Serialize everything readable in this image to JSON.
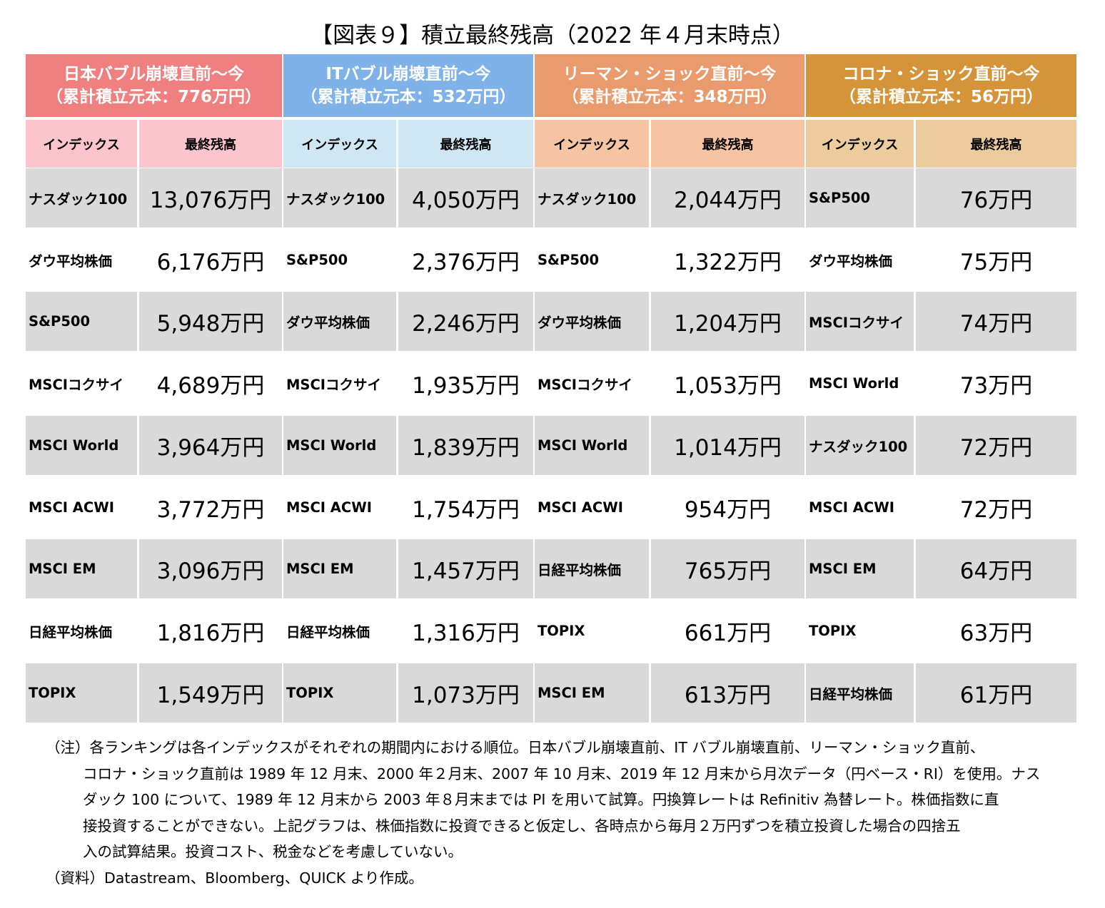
{
  "chart_data": {
    "type": "table",
    "title": "【図表９】積立最終残高（2022 年４月末時点）",
    "groups": [
      {
        "header_line1": "日本バブル崩壊直前〜今",
        "header_line2": "（累計積立元本：776万円）",
        "header_color": "#f08080",
        "subheader_color": "#fcc4cc",
        "col_index": "インデックス",
        "col_value": "最終残高",
        "rows": [
          {
            "index": "ナスダック100",
            "value": "13,076万円"
          },
          {
            "index": "ダウ平均株価",
            "value": "6,176万円"
          },
          {
            "index": "S&P500",
            "value": "5,948万円"
          },
          {
            "index": "MSCIコクサイ",
            "value": "4,689万円"
          },
          {
            "index": "MSCI World",
            "value": "3,964万円"
          },
          {
            "index": "MSCI ACWI",
            "value": "3,772万円"
          },
          {
            "index": "MSCI EM",
            "value": "3,096万円"
          },
          {
            "index": "日経平均株価",
            "value": "1,816万円"
          },
          {
            "index": "TOPIX",
            "value": "1,549万円"
          }
        ]
      },
      {
        "header_line1": "ITバブル崩壊直前〜今",
        "header_line2": "（累計積立元本：532万円）",
        "header_color": "#7eb2e8",
        "subheader_color": "#cfe6f5",
        "col_index": "インデックス",
        "col_value": "最終残高",
        "rows": [
          {
            "index": "ナスダック100",
            "value": "4,050万円"
          },
          {
            "index": "S&P500",
            "value": "2,376万円"
          },
          {
            "index": "ダウ平均株価",
            "value": "2,246万円"
          },
          {
            "index": "MSCIコクサイ",
            "value": "1,935万円"
          },
          {
            "index": "MSCI World",
            "value": "1,839万円"
          },
          {
            "index": "MSCI ACWI",
            "value": "1,754万円"
          },
          {
            "index": "MSCI EM",
            "value": "1,457万円"
          },
          {
            "index": "日経平均株価",
            "value": "1,316万円"
          },
          {
            "index": "TOPIX",
            "value": "1,073万円"
          }
        ]
      },
      {
        "header_line1": "リーマン・ショック直前〜今",
        "header_line2": "（累計積立元本：348万円）",
        "header_color": "#e99b6e",
        "subheader_color": "#f6c4a2",
        "col_index": "インデックス",
        "col_value": "最終残高",
        "rows": [
          {
            "index": "ナスダック100",
            "value": "2,044万円"
          },
          {
            "index": "S&P500",
            "value": "1,322万円"
          },
          {
            "index": "ダウ平均株価",
            "value": "1,204万円"
          },
          {
            "index": "MSCIコクサイ",
            "value": "1,053万円"
          },
          {
            "index": "MSCI World",
            "value": "1,014万円"
          },
          {
            "index": "MSCI ACWI",
            "value": "954万円"
          },
          {
            "index": "日経平均株価",
            "value": "765万円"
          },
          {
            "index": "TOPIX",
            "value": "661万円"
          },
          {
            "index": "MSCI EM",
            "value": "613万円"
          }
        ]
      },
      {
        "header_line1": "コロナ・ショック直前〜今",
        "header_line2": "（累計積立元本：56万円）",
        "header_color": "#d6943a",
        "subheader_color": "#eccb9c",
        "col_index": "インデックス",
        "col_value": "最終残高",
        "rows": [
          {
            "index": "S&P500",
            "value": "76万円"
          },
          {
            "index": "ダウ平均株価",
            "value": "75万円"
          },
          {
            "index": "MSCIコクサイ",
            "value": "74万円"
          },
          {
            "index": "MSCI World",
            "value": "73万円"
          },
          {
            "index": "ナスダック100",
            "value": "72万円"
          },
          {
            "index": "MSCI ACWI",
            "value": "72万円"
          },
          {
            "index": "MSCI EM",
            "value": "64万円"
          },
          {
            "index": "TOPIX",
            "value": "63万円"
          },
          {
            "index": "日経平均株価",
            "value": "61万円"
          }
        ]
      }
    ]
  },
  "notes": {
    "line1": "（注）各ランキングは各インデックスがそれぞれの期間内における順位。日本バブル崩壊直前、IT バブル崩壊直前、リーマン・ショック直前、",
    "line2": "コロナ・ショック直前は 1989 年 12 月末、2000 年２月末、2007 年 10 月末、2019 年 12 月末から月次データ（円ベース・RI）を使用。ナス",
    "line3": "ダック 100 について、1989 年 12 月末から 2003 年８月末までは PI を用いて試算。円換算レートは Refinitiv 為替レート。株価指数に直",
    "line4": "接投資することができない。上記グラフは、株価指数に投資できると仮定し、各時点から毎月２万円ずつを積立投資した場合の四捨五",
    "line5": "入の試算結果。投資コスト、税金などを考慮していない。",
    "source": "（資料）Datastream、Bloomberg、QUICK より作成。"
  }
}
